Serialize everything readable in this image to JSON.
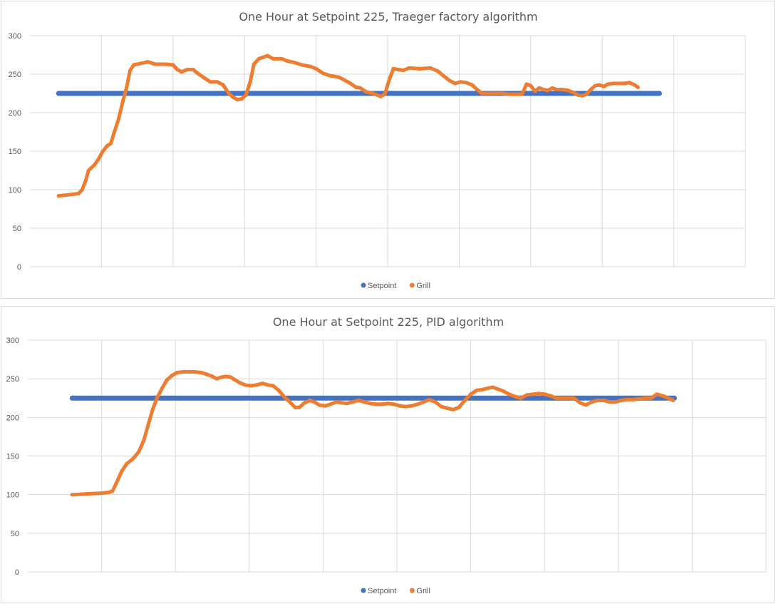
{
  "chart_data": [
    {
      "type": "line",
      "title": "One Hour at Setpoint 225, Traeger factory algorithm",
      "xlabel": "",
      "ylabel": "",
      "ylim": [
        0,
        300
      ],
      "yticks": [
        0,
        50,
        100,
        150,
        200,
        250,
        300
      ],
      "x_range": [
        0,
        1000
      ],
      "xgrid": [
        100,
        200,
        300,
        400,
        500,
        600,
        700,
        800,
        900
      ],
      "grid": true,
      "legend_position": "bottom",
      "series": [
        {
          "name": "Setpoint",
          "color": "#4472c4",
          "points": [
            [
              40,
              225
            ],
            [
              880,
              225
            ]
          ]
        },
        {
          "name": "Grill",
          "color": "#ed7d31",
          "points": [
            [
              40,
              92
            ],
            [
              60,
              94
            ],
            [
              68,
              95
            ],
            [
              73,
              100
            ],
            [
              78,
              112
            ],
            [
              82,
              125
            ],
            [
              90,
              132
            ],
            [
              96,
              140
            ],
            [
              102,
              150
            ],
            [
              108,
              157
            ],
            [
              113,
              160
            ],
            [
              118,
              175
            ],
            [
              124,
              192
            ],
            [
              130,
              215
            ],
            [
              135,
              232
            ],
            [
              140,
              255
            ],
            [
              145,
              262
            ],
            [
              155,
              264
            ],
            [
              165,
              266
            ],
            [
              175,
              263
            ],
            [
              190,
              263
            ],
            [
              200,
              262
            ],
            [
              206,
              256
            ],
            [
              212,
              253
            ],
            [
              220,
              256
            ],
            [
              228,
              256
            ],
            [
              236,
              250
            ],
            [
              244,
              245
            ],
            [
              252,
              240
            ],
            [
              262,
              240
            ],
            [
              270,
              236
            ],
            [
              278,
              225
            ],
            [
              284,
              220
            ],
            [
              290,
              217
            ],
            [
              296,
              218
            ],
            [
              302,
              223
            ],
            [
              308,
              240
            ],
            [
              313,
              263
            ],
            [
              320,
              270
            ],
            [
              332,
              274
            ],
            [
              340,
              270
            ],
            [
              352,
              270
            ],
            [
              360,
              267
            ],
            [
              370,
              265
            ],
            [
              380,
              262
            ],
            [
              392,
              260
            ],
            [
              400,
              257
            ],
            [
              410,
              251
            ],
            [
              420,
              248
            ],
            [
              432,
              246
            ],
            [
              440,
              242
            ],
            [
              448,
              238
            ],
            [
              456,
              233
            ],
            [
              462,
              232
            ],
            [
              470,
              227
            ],
            [
              480,
              225
            ],
            [
              490,
              221
            ],
            [
              496,
              224
            ],
            [
              502,
              242
            ],
            [
              508,
              257
            ],
            [
              515,
              256
            ],
            [
              522,
              255
            ],
            [
              530,
              258
            ],
            [
              545,
              257
            ],
            [
              560,
              258
            ],
            [
              570,
              254
            ],
            [
              578,
              248
            ],
            [
              586,
              242
            ],
            [
              594,
              238
            ],
            [
              602,
              240
            ],
            [
              610,
              239
            ],
            [
              618,
              236
            ],
            [
              625,
              230
            ],
            [
              632,
              225
            ],
            [
              640,
              225
            ],
            [
              650,
              225
            ],
            [
              660,
              225
            ],
            [
              670,
              224
            ],
            [
              680,
              224
            ],
            [
              688,
              224
            ],
            [
              694,
              237
            ],
            [
              700,
              235
            ],
            [
              706,
              228
            ],
            [
              712,
              232
            ],
            [
              718,
              230
            ],
            [
              724,
              229
            ],
            [
              730,
              232
            ],
            [
              736,
              230
            ],
            [
              744,
              230
            ],
            [
              752,
              229
            ],
            [
              760,
              226
            ],
            [
              766,
              223
            ],
            [
              772,
              222
            ],
            [
              778,
              224
            ],
            [
              784,
              230
            ],
            [
              790,
              235
            ],
            [
              796,
              236
            ],
            [
              802,
              234
            ],
            [
              808,
              237
            ],
            [
              815,
              238
            ],
            [
              822,
              238
            ],
            [
              830,
              238
            ],
            [
              838,
              239
            ],
            [
              845,
              236
            ],
            [
              850,
              233
            ]
          ]
        }
      ]
    },
    {
      "type": "line",
      "title": "One Hour at Setpoint 225, PID algorithm",
      "xlabel": "",
      "ylabel": "",
      "ylim": [
        0,
        300
      ],
      "yticks": [
        0,
        50,
        100,
        150,
        200,
        250,
        300
      ],
      "x_range": [
        0,
        1000
      ],
      "xgrid": [
        100,
        200,
        300,
        400,
        500,
        600,
        700,
        800,
        900
      ],
      "grid": true,
      "legend_position": "bottom",
      "series": [
        {
          "name": "Setpoint",
          "color": "#4472c4",
          "points": [
            [
              60,
              225
            ],
            [
              876,
              225
            ]
          ]
        },
        {
          "name": "Grill",
          "color": "#ed7d31",
          "points": [
            [
              60,
              100
            ],
            [
              80,
              101
            ],
            [
              100,
              102
            ],
            [
              110,
              103
            ],
            [
              115,
              105
            ],
            [
              120,
              115
            ],
            [
              127,
              130
            ],
            [
              134,
              140
            ],
            [
              142,
              146
            ],
            [
              150,
              155
            ],
            [
              157,
              170
            ],
            [
              163,
              190
            ],
            [
              169,
              210
            ],
            [
              175,
              225
            ],
            [
              182,
              238
            ],
            [
              188,
              248
            ],
            [
              195,
              254
            ],
            [
              202,
              258
            ],
            [
              212,
              259
            ],
            [
              225,
              259
            ],
            [
              235,
              258
            ],
            [
              242,
              256
            ],
            [
              250,
              253
            ],
            [
              256,
              250
            ],
            [
              262,
              252
            ],
            [
              268,
              253
            ],
            [
              275,
              252
            ],
            [
              280,
              249
            ],
            [
              287,
              245
            ],
            [
              294,
              242
            ],
            [
              302,
              241
            ],
            [
              310,
              242
            ],
            [
              318,
              244
            ],
            [
              325,
              242
            ],
            [
              332,
              241
            ],
            [
              340,
              235
            ],
            [
              348,
              226
            ],
            [
              355,
              220
            ],
            [
              362,
              213
            ],
            [
              368,
              213
            ],
            [
              375,
              219
            ],
            [
              382,
              222
            ],
            [
              388,
              220
            ],
            [
              395,
              216
            ],
            [
              403,
              215
            ],
            [
              410,
              217
            ],
            [
              418,
              220
            ],
            [
              425,
              219
            ],
            [
              432,
              218
            ],
            [
              440,
              220
            ],
            [
              448,
              222
            ],
            [
              456,
              220
            ],
            [
              464,
              218
            ],
            [
              472,
              217
            ],
            [
              480,
              217
            ],
            [
              488,
              218
            ],
            [
              496,
              217
            ],
            [
              504,
              215
            ],
            [
              512,
              214
            ],
            [
              520,
              215
            ],
            [
              528,
              217
            ],
            [
              536,
              220
            ],
            [
              544,
              223
            ],
            [
              552,
              220
            ],
            [
              560,
              214
            ],
            [
              568,
              212
            ],
            [
              576,
              210
            ],
            [
              584,
              213
            ],
            [
              592,
              222
            ],
            [
              600,
              230
            ],
            [
              608,
              235
            ],
            [
              616,
              236
            ],
            [
              624,
              238
            ],
            [
              630,
              239
            ],
            [
              636,
              237
            ],
            [
              644,
              234
            ],
            [
              652,
              230
            ],
            [
              660,
              227
            ],
            [
              668,
              225
            ],
            [
              676,
              229
            ],
            [
              684,
              230
            ],
            [
              692,
              231
            ],
            [
              700,
              230
            ],
            [
              708,
              228
            ],
            [
              716,
              225
            ],
            [
              724,
              225
            ],
            [
              732,
              225
            ],
            [
              740,
              225
            ],
            [
              748,
              219
            ],
            [
              756,
              216
            ],
            [
              764,
              220
            ],
            [
              772,
              222
            ],
            [
              780,
              222
            ],
            [
              788,
              220
            ],
            [
              796,
              220
            ],
            [
              804,
              222
            ],
            [
              812,
              223
            ],
            [
              820,
              223
            ],
            [
              828,
              224
            ],
            [
              836,
              225
            ],
            [
              844,
              225
            ],
            [
              852,
              230
            ],
            [
              860,
              228
            ],
            [
              868,
              225
            ],
            [
              874,
              222
            ]
          ]
        }
      ]
    }
  ]
}
